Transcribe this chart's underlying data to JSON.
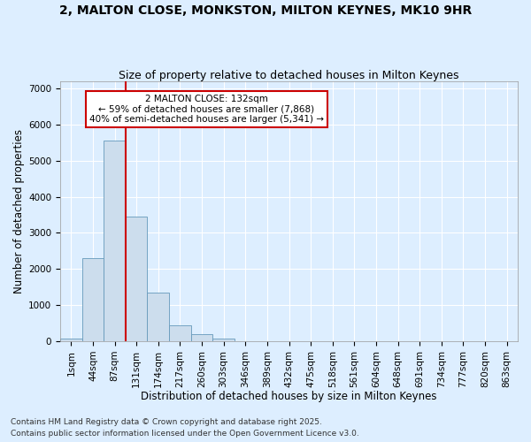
{
  "title1": "2, MALTON CLOSE, MONKSTON, MILTON KEYNES, MK10 9HR",
  "title2": "Size of property relative to detached houses in Milton Keynes",
  "xlabel": "Distribution of detached houses by size in Milton Keynes",
  "ylabel": "Number of detached properties",
  "categories": [
    "1sqm",
    "44sqm",
    "87sqm",
    "131sqm",
    "174sqm",
    "217sqm",
    "260sqm",
    "303sqm",
    "346sqm",
    "389sqm",
    "432sqm",
    "475sqm",
    "518sqm",
    "561sqm",
    "604sqm",
    "648sqm",
    "691sqm",
    "734sqm",
    "777sqm",
    "820sqm",
    "863sqm"
  ],
  "values": [
    75,
    2300,
    5550,
    3450,
    1350,
    450,
    185,
    80,
    0,
    0,
    0,
    0,
    0,
    0,
    0,
    0,
    0,
    0,
    0,
    0,
    0
  ],
  "bar_color": "#ccdded",
  "bar_edge_color": "#6699bb",
  "property_line_index": 2,
  "property_line_color": "#cc0000",
  "annotation_text": "2 MALTON CLOSE: 132sqm\n← 59% of detached houses are smaller (7,868)\n40% of semi-detached houses are larger (5,341) →",
  "annotation_box_facecolor": "#ffffff",
  "annotation_box_edgecolor": "#cc0000",
  "ylim": [
    0,
    7200
  ],
  "yticks": [
    0,
    1000,
    2000,
    3000,
    4000,
    5000,
    6000,
    7000
  ],
  "background_color": "#ddeeff",
  "plot_bg_color": "#ddeeff",
  "grid_color": "#ffffff",
  "footer_line1": "Contains HM Land Registry data © Crown copyright and database right 2025.",
  "footer_line2": "Contains public sector information licensed under the Open Government Licence v3.0.",
  "title1_fontsize": 10,
  "title2_fontsize": 9,
  "xlabel_fontsize": 8.5,
  "ylabel_fontsize": 8.5,
  "tick_fontsize": 7.5,
  "annotation_fontsize": 7.5,
  "footer_fontsize": 6.5
}
